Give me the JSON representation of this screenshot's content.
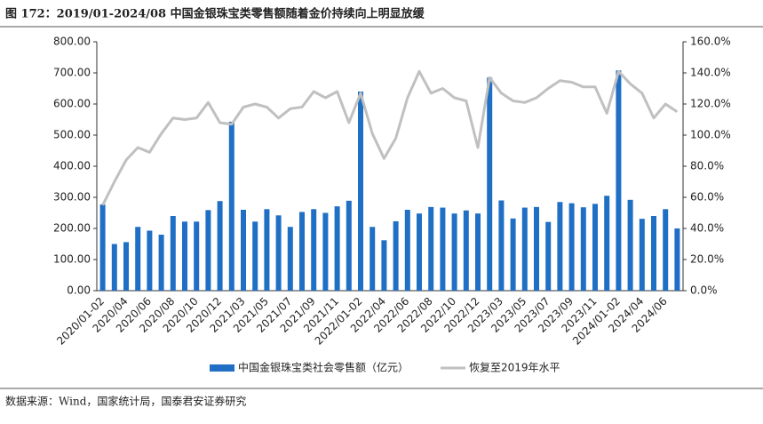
{
  "chart_data": {
    "type": "bar",
    "title": "图 172：2019/01-2024/08 中国金银珠宝类零售额随着金价持续向上明显放缓",
    "source": "数据来源：Wind，国家统计局，国泰君安证券研究",
    "categories": [
      "2020/01-02",
      null,
      "2020/04",
      null,
      "2020/06",
      null,
      "2020/08",
      null,
      "2020/10",
      null,
      "2020/12",
      null,
      "2021/03",
      null,
      "2021/05",
      null,
      "2021/07",
      null,
      "2021/09",
      null,
      "2021/11",
      null,
      "2022/01-02",
      null,
      "2022/04",
      null,
      "2022/06",
      null,
      "2022/08",
      null,
      "2022/10",
      null,
      "2022/12",
      null,
      "2023/03",
      null,
      "2023/05",
      null,
      "2023/07",
      null,
      "2023/09",
      null,
      "2023/11",
      null,
      "2024/01-02",
      null,
      "2024/04",
      null,
      "2024/06",
      null
    ],
    "series": [
      {
        "name": "中国金银珠宝类社会零售额（亿元）",
        "type": "bar",
        "color": "#1f6fc5",
        "values": [
          277,
          150,
          156,
          205,
          193,
          180,
          240,
          222,
          222,
          259,
          288,
          543,
          260,
          222,
          262,
          242,
          205,
          253,
          262,
          250,
          271,
          289,
          640,
          205,
          162,
          223,
          260,
          248,
          269,
          267,
          248,
          258,
          248,
          685,
          290,
          232,
          267,
          269,
          221,
          285,
          281,
          268,
          279,
          305,
          708,
          292,
          231,
          240,
          262,
          200
        ]
      },
      {
        "name": "恢复至2019年水平",
        "type": "line",
        "axis": "y2",
        "color": "#c0c0c0",
        "values": [
          55,
          70,
          84,
          92,
          89,
          101,
          111,
          110,
          111,
          121,
          108,
          107,
          118,
          120,
          118,
          111,
          117,
          118,
          128,
          124,
          128,
          108,
          127,
          101,
          85,
          98,
          124,
          141,
          127,
          130,
          124,
          122,
          92,
          137,
          127,
          122,
          121,
          124,
          130,
          135,
          134,
          131,
          131,
          114,
          141,
          133,
          127,
          111,
          120,
          115
        ]
      }
    ],
    "ylim": [
      0,
      800
    ],
    "yticks": [
      {
        "value": 0,
        "label": "0.00"
      },
      {
        "value": 100,
        "label": "100.00"
      },
      {
        "value": 200,
        "label": "200.00"
      },
      {
        "value": 300,
        "label": "300.00"
      },
      {
        "value": 400,
        "label": "400.00"
      },
      {
        "value": 500,
        "label": "500.00"
      },
      {
        "value": 600,
        "label": "600.00"
      },
      {
        "value": 700,
        "label": "700.00"
      },
      {
        "value": 800,
        "label": "800.00"
      }
    ],
    "y2lim": [
      0,
      160
    ],
    "y2ticks": [
      {
        "value": 0,
        "label": "0.0%"
      },
      {
        "value": 20,
        "label": "20.0%"
      },
      {
        "value": 40,
        "label": "40.0%"
      },
      {
        "value": 60,
        "label": "60.0%"
      },
      {
        "value": 80,
        "label": "80.0%"
      },
      {
        "value": 100,
        "label": "100.0%"
      },
      {
        "value": 120,
        "label": "120.0%"
      },
      {
        "value": 140,
        "label": "140.0%"
      },
      {
        "value": 160,
        "label": "160.0%"
      }
    ],
    "legend": "bottom"
  }
}
